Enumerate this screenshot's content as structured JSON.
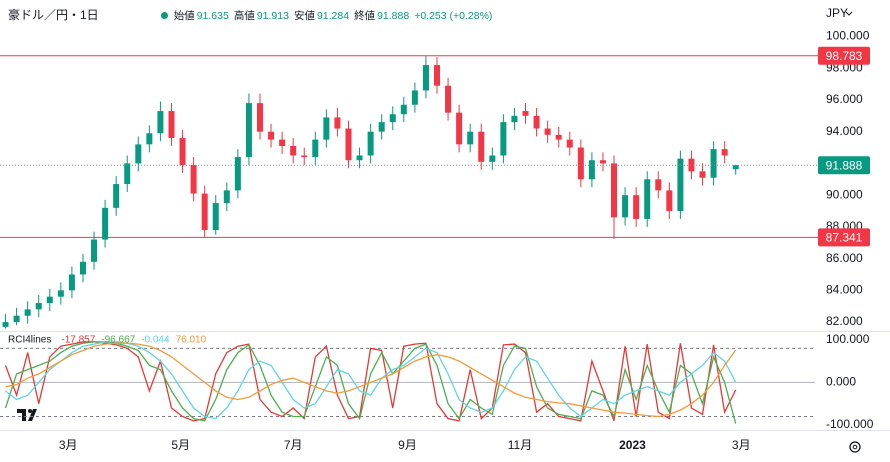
{
  "chart_data": [
    {
      "type": "candlestick",
      "title": "豪ドル／円・1日",
      "currency": "JPY",
      "ohlc_labels": [
        "始値",
        "高値",
        "安値",
        "終値"
      ],
      "change_label": "+0.253 (+0.28%)",
      "up_color": "#089981",
      "down_color": "#f23645",
      "x": [
        25,
        31,
        37,
        43,
        49,
        55,
        61,
        67,
        73,
        79,
        85,
        91,
        97,
        103,
        109,
        115,
        121,
        127,
        133,
        139,
        145,
        151,
        157,
        163,
        169,
        175,
        181,
        187,
        193,
        199,
        205,
        211,
        217,
        223,
        229,
        235,
        241,
        247,
        253,
        259,
        265,
        271,
        277,
        283,
        289,
        295,
        301,
        307,
        313,
        319,
        325,
        331,
        337,
        343,
        349,
        355,
        361,
        367,
        373,
        379,
        385,
        391,
        397,
        403,
        409,
        415,
        421
      ],
      "open": [
        81.7,
        82.0,
        82.4,
        82.8,
        83.2,
        83.6,
        84.0,
        85.0,
        85.8,
        87.2,
        89.2,
        90.7,
        92.0,
        93.2,
        93.9,
        95.3,
        93.6,
        91.9,
        90.1,
        87.8,
        89.5,
        90.3,
        92.4,
        95.8,
        94.0,
        93.5,
        93.1,
        92.5,
        92.4,
        93.5,
        94.9,
        94.2,
        92.2,
        92.5,
        94.0,
        94.6,
        95.1,
        95.7,
        96.6,
        98.2,
        96.9,
        95.2,
        93.2,
        94.0,
        92.1,
        92.5,
        94.6,
        95.3,
        95.0,
        94.2,
        93.8,
        93.5,
        93.0,
        91.0,
        92.2,
        92.0,
        88.6,
        90.0,
        88.5,
        91.0,
        90.3,
        89.0,
        92.3,
        91.5,
        91.1,
        92.9,
        91.635
      ],
      "high": [
        82.5,
        82.9,
        83.3,
        83.7,
        84.1,
        84.5,
        85.5,
        86.3,
        87.7,
        89.7,
        91.2,
        92.5,
        93.7,
        94.4,
        95.9,
        95.8,
        94.1,
        92.4,
        90.6,
        90.0,
        90.8,
        92.9,
        96.4,
        96.4,
        94.5,
        94.0,
        93.6,
        93.0,
        94.0,
        95.4,
        95.5,
        94.7,
        93.0,
        94.5,
        95.1,
        95.6,
        96.2,
        97.1,
        98.783,
        98.7,
        97.4,
        95.7,
        94.5,
        94.5,
        93.0,
        95.1,
        95.5,
        95.8,
        95.5,
        94.7,
        94.3,
        94.0,
        93.5,
        92.7,
        92.7,
        92.5,
        90.5,
        90.5,
        91.5,
        91.5,
        90.8,
        92.8,
        92.8,
        92.0,
        93.4,
        93.4,
        91.913
      ],
      "low": [
        81.6,
        81.8,
        81.9,
        82.3,
        82.7,
        83.1,
        83.5,
        84.5,
        85.3,
        86.7,
        88.7,
        90.2,
        91.5,
        92.7,
        93.4,
        93.1,
        91.4,
        89.6,
        87.341,
        87.5,
        89.0,
        89.8,
        91.9,
        93.5,
        93.0,
        92.6,
        92.0,
        91.9,
        91.9,
        93.0,
        93.7,
        91.7,
        91.7,
        92.0,
        93.5,
        94.1,
        94.6,
        95.2,
        96.1,
        96.4,
        94.7,
        92.7,
        92.7,
        91.6,
        91.6,
        92.0,
        94.1,
        94.5,
        93.7,
        93.3,
        93.0,
        92.5,
        90.5,
        90.5,
        91.5,
        87.25,
        88.1,
        88.0,
        88.0,
        89.8,
        88.5,
        88.5,
        91.0,
        90.6,
        90.6,
        92.0,
        91.284
      ],
      "close": [
        82.0,
        82.4,
        82.8,
        83.2,
        83.6,
        84.0,
        85.0,
        85.8,
        87.2,
        89.2,
        90.7,
        92.0,
        93.2,
        93.9,
        95.3,
        93.6,
        91.9,
        90.1,
        87.8,
        89.5,
        90.3,
        92.4,
        95.8,
        94.0,
        93.5,
        93.1,
        92.5,
        92.4,
        93.5,
        94.9,
        94.2,
        92.2,
        92.5,
        94.0,
        94.6,
        95.1,
        95.7,
        96.6,
        98.2,
        96.9,
        95.2,
        93.2,
        94.0,
        92.1,
        92.5,
        94.6,
        95.0,
        95.0,
        94.2,
        93.8,
        93.5,
        93.0,
        91.0,
        92.2,
        92.0,
        88.6,
        90.0,
        88.5,
        91.0,
        90.3,
        89.0,
        92.3,
        91.5,
        91.1,
        92.9,
        92.5,
        91.888
      ],
      "hlines": [
        {
          "value": 98.783,
          "color": "#f23645"
        },
        {
          "value": 87.341,
          "color": "#f23645"
        }
      ],
      "xlim": [
        22,
        464
      ],
      "xticks": [
        {
          "value": 59,
          "label": "3月"
        },
        {
          "value": 120,
          "label": "5月"
        },
        {
          "value": 181,
          "label": "7月"
        },
        {
          "value": 243,
          "label": "9月"
        },
        {
          "value": 304,
          "label": "11月"
        },
        {
          "value": 365,
          "label": "2023"
        },
        {
          "value": 424,
          "label": "3月"
        }
      ],
      "ylim": [
        81.5,
        102.3
      ],
      "yticks": [
        {
          "value": 82,
          "label": "82.000"
        },
        {
          "value": 84,
          "label": "84.000"
        },
        {
          "value": 86,
          "label": "86.000"
        },
        {
          "value": 88,
          "label": "88.000"
        },
        {
          "value": 90,
          "label": "90.000"
        },
        {
          "value": 92,
          "label": "92.000"
        },
        {
          "value": 94,
          "label": "94.000"
        },
        {
          "value": 96,
          "label": "96.000"
        },
        {
          "value": 98,
          "label": "98.000"
        },
        {
          "value": 100,
          "label": "100.000"
        }
      ],
      "grid": false
    },
    {
      "type": "line",
      "title": "RCI4lines",
      "series": [
        {
          "color": "#e53935",
          "values": [
            40,
            -30,
            70,
            -50,
            60,
            85,
            90,
            95,
            95,
            92,
            88,
            80,
            60,
            -20,
            50,
            -60,
            -80,
            -90,
            -85,
            20,
            70,
            85,
            90,
            -40,
            -70,
            -80,
            -60,
            -85,
            60,
            85,
            -30,
            -85,
            -80,
            80,
            75,
            -60,
            85,
            90,
            92,
            -50,
            -85,
            -90,
            30,
            -85,
            -60,
            88,
            90,
            70,
            -70,
            -50,
            -80,
            -85,
            -90,
            50,
            -20,
            -90,
            85,
            -80,
            90,
            -70,
            -85,
            92,
            -60,
            -75,
            88,
            -70,
            -17.857
          ]
        },
        {
          "color": "#4caf50",
          "values": [
            -60,
            20,
            30,
            40,
            50,
            70,
            85,
            92,
            95,
            95,
            92,
            85,
            75,
            40,
            30,
            -20,
            -60,
            -85,
            -90,
            -40,
            30,
            70,
            88,
            40,
            -30,
            -70,
            -80,
            -80,
            -10,
            60,
            40,
            -50,
            -85,
            20,
            70,
            20,
            50,
            80,
            90,
            40,
            -50,
            -85,
            -40,
            -60,
            -75,
            40,
            85,
            80,
            -10,
            -60,
            -75,
            -80,
            -85,
            -20,
            -30,
            -80,
            30,
            -40,
            40,
            -20,
            -70,
            40,
            20,
            -50,
            60,
            0,
            -96.667
          ]
        },
        {
          "color": "#5fd6e6",
          "values": [
            -20,
            -40,
            -30,
            0,
            30,
            50,
            70,
            85,
            90,
            95,
            95,
            92,
            85,
            70,
            50,
            20,
            -20,
            -60,
            -80,
            -85,
            -60,
            -20,
            30,
            50,
            40,
            0,
            -40,
            -60,
            -50,
            -10,
            30,
            20,
            -20,
            -30,
            10,
            30,
            40,
            60,
            80,
            70,
            20,
            -40,
            -60,
            -70,
            -60,
            -20,
            30,
            60,
            50,
            10,
            -30,
            -60,
            -80,
            -60,
            -40,
            -50,
            -30,
            -20,
            -10,
            -20,
            -30,
            0,
            20,
            40,
            70,
            50,
            -0.044
          ]
        },
        {
          "color": "#f59a3c",
          "last_label": "76.010",
          "values": [
            -10,
            -5,
            10,
            20,
            35,
            50,
            65,
            75,
            85,
            90,
            92,
            92,
            90,
            85,
            75,
            60,
            40,
            20,
            0,
            -20,
            -35,
            -40,
            -35,
            -20,
            -5,
            5,
            10,
            0,
            -10,
            -20,
            -25,
            -20,
            -10,
            0,
            10,
            20,
            35,
            50,
            60,
            65,
            60,
            50,
            35,
            20,
            5,
            -10,
            -25,
            -35,
            -40,
            -45,
            -48,
            -50,
            -55,
            -60,
            -65,
            -70,
            -72,
            -75,
            -78,
            -80,
            -75,
            -65,
            -50,
            -30,
            0,
            40,
            76.01
          ]
        }
      ],
      "levels": [
        80,
        -80
      ],
      "ylim": [
        -107,
        116
      ],
      "yticks": [
        {
          "value": 100,
          "label": "100.000"
        },
        {
          "value": 0,
          "label": "0.000"
        },
        {
          "value": -100,
          "label": "-100.000"
        }
      ]
    }
  ]
}
